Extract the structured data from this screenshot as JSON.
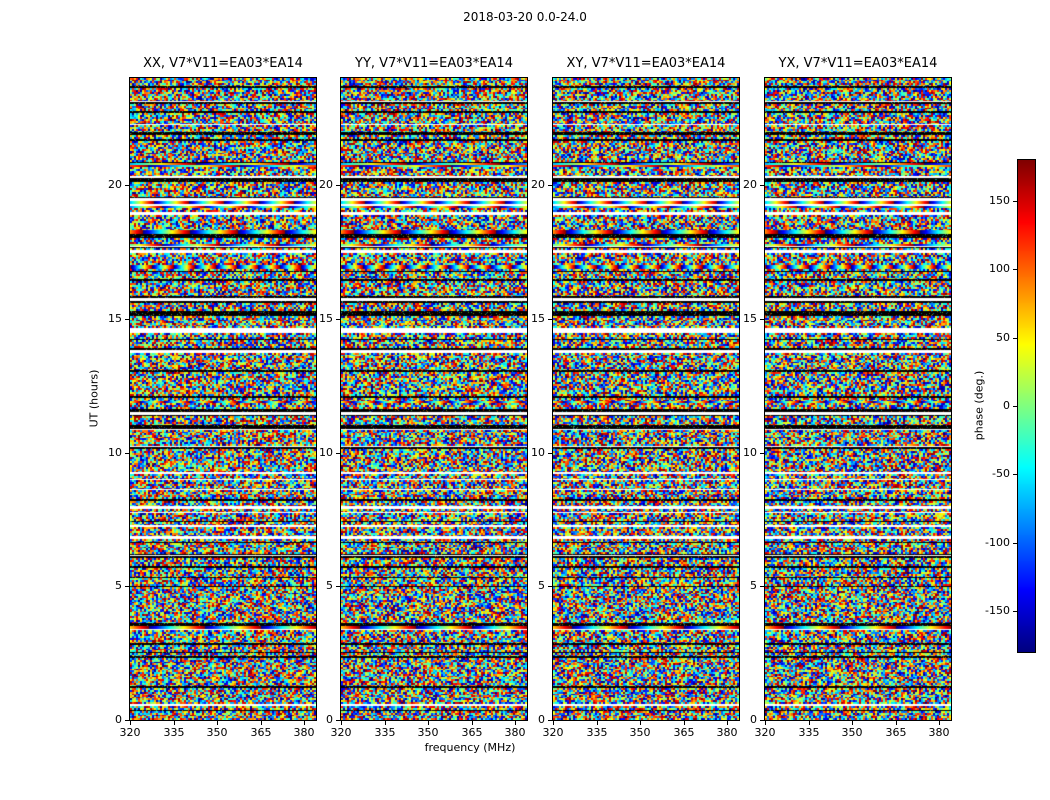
{
  "figure": {
    "title": "2018-03-20 0.0-24.0"
  },
  "chart_data": {
    "type": "heatmap",
    "title": "2018-03-20 0.0-24.0",
    "panels": [
      "XX, V7*V11=EA03*EA14",
      "YY, V7*V11=EA03*EA14",
      "XY, V7*V11=EA03*EA14",
      "YX, V7*V11=EA03*EA14"
    ],
    "xlabel": "frequency (MHz)",
    "ylabel": "UT (hours)",
    "value_label": "phase (deg.)",
    "colormap": "jet",
    "x_range": [
      320,
      384
    ],
    "y_range": [
      0,
      24
    ],
    "value_range": [
      -180,
      180
    ],
    "x_tick_values": [
      320,
      335,
      350,
      365,
      380
    ],
    "x_tick_labels": [
      "320",
      "335",
      "350",
      "365",
      "380"
    ],
    "y_tick_values": [
      0,
      5,
      10,
      15,
      20
    ],
    "y_tick_labels": [
      "0",
      "5",
      "10",
      "15",
      "20"
    ],
    "colorbar_tick_values": [
      150,
      100,
      50,
      0,
      -50,
      -100,
      -150
    ],
    "colorbar_tick_labels": [
      "150",
      "100",
      "50",
      "0",
      "-50",
      "-100",
      "-150"
    ],
    "data_description": "Visibility phase waterfall (UT hours vs frequency) for baseline V7*V11 = EA03*EA14 on 2018-03-20, UT 0.0-24.0, shown for four polarization products (XX, YY, XY, YX). Pixel values are noise-dominated phases uniformly distributed in [-180, 180] degrees, with horizontal white flagged-time rows, dark/black rows, and occasional coherent rainbow phase-ramp rows; the row band pattern is identical across the four panels."
  }
}
